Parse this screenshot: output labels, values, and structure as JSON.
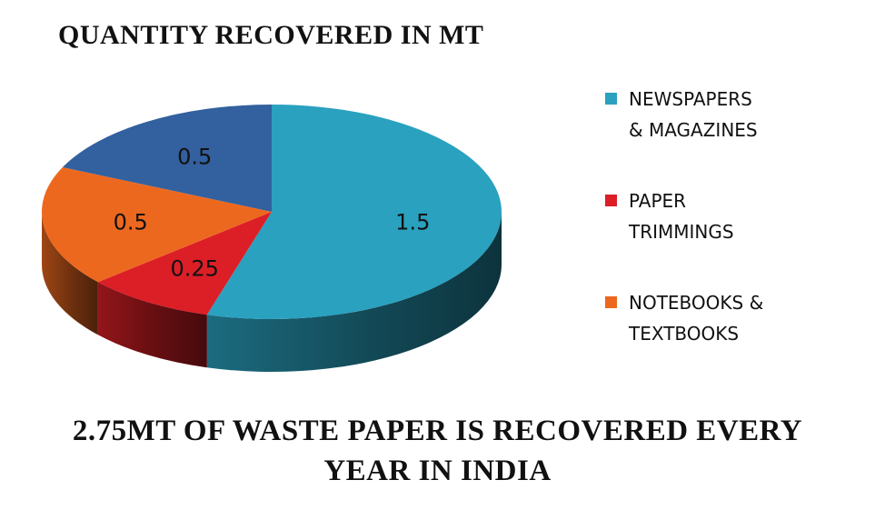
{
  "chart_data": {
    "type": "pie",
    "title": "QUANTITY RECOVERED IN MT",
    "slices": [
      {
        "label": "NEWSPAPERS & MAGAZINES",
        "value": 1.5,
        "value_label": "1.5",
        "color": "#2aa1bf"
      },
      {
        "label": "PAPER TRIMMINGS",
        "value": 0.25,
        "value_label": "0.25",
        "color": "#dc1f27"
      },
      {
        "label": "NOTEBOOKS & TEXTBOOKS",
        "value": 0.5,
        "value_label": "0.5",
        "color": "#ed681f"
      },
      {
        "label": "",
        "value": 0.5,
        "value_label": "0.5",
        "color": "#33609e"
      }
    ],
    "legend_position": "right",
    "three_d": true
  },
  "legend": [
    {
      "line1": "NEWSPAPERS",
      "line2": "& MAGAZINES",
      "color": "#2aa1bf"
    },
    {
      "line1": "PAPER",
      "line2": "TRIMMINGS",
      "color": "#dc1f27"
    },
    {
      "line1": "NOTEBOOKS &",
      "line2": "TEXTBOOKS",
      "color": "#ed681f"
    }
  ],
  "footer": {
    "line1": "2.75MT OF WASTE PAPER IS RECOVERED EVERY",
    "line2": "YEAR IN INDIA"
  }
}
